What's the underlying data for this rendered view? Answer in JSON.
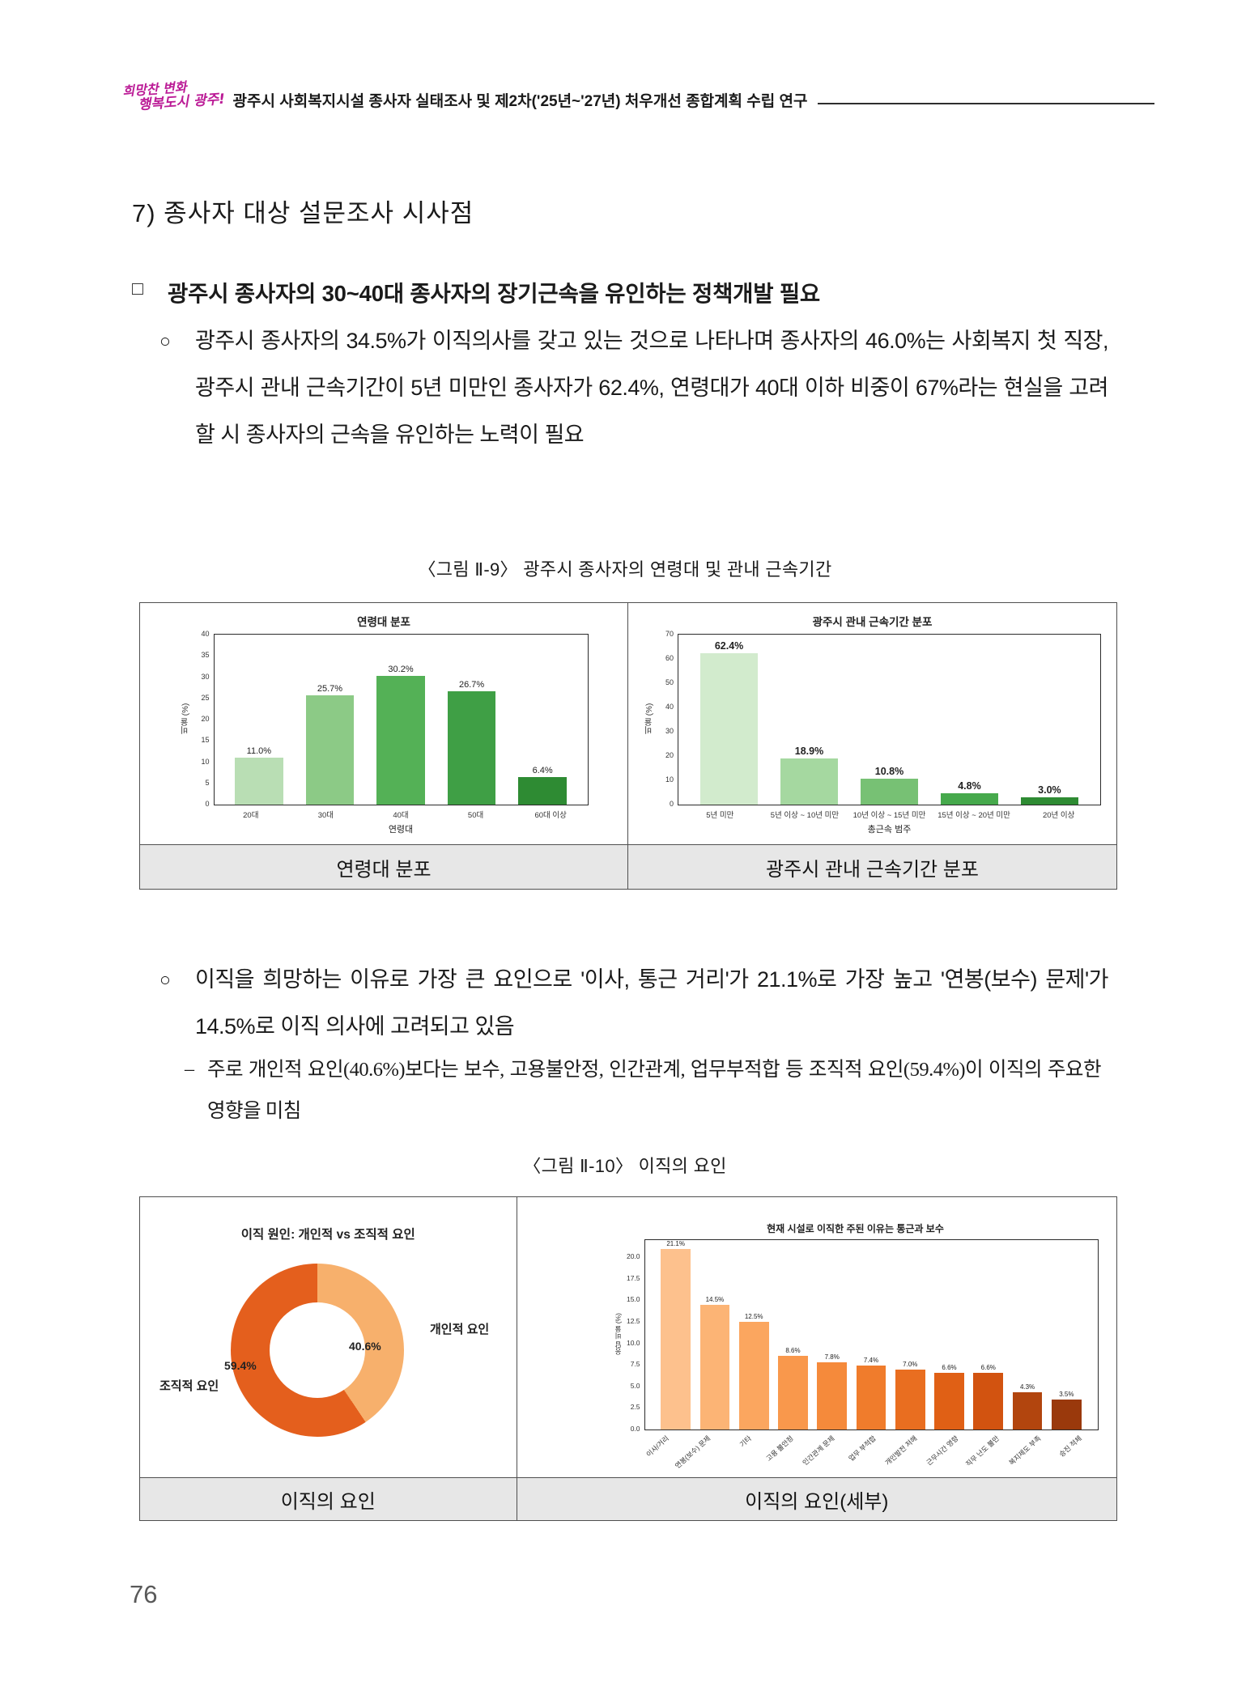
{
  "header": {
    "logo_line1": "희망찬 변화",
    "logo_line2": "행복도시 광주!",
    "title": "광주시 사회복지시설 종사자 실태조사 및 제2차('25년~'27년) 처우개선 종합계획 수립 연구"
  },
  "section": {
    "heading": "7) 종사자 대상 설문조사 시사점",
    "box_marker": "□",
    "box_heading": "광주시 종사자의 30~40대 종사자의 장기근속을 유인하는 정책개발 필요"
  },
  "bullets": {
    "bullet1_marker": "○",
    "bullet1_text": "광주시 종사자의 34.5%가 이직의사를 갖고 있는 것으로 나타나며 종사자의 46.0%는 사회복지 첫 직장, 광주시 관내 근속기간이 5년 미만인 종사자가 62.4%, 연령대가 40대 이하 비중이 67%라는 현실을 고려할 시 종사자의 근속을 유인하는 노력이 필요",
    "bullet2_marker": "○",
    "bullet2_text": "이직을 희망하는 이유로 가장 큰 요인으로 '이사, 통근 거리'가 21.1%로 가장 높고 '연봉(보수) 문제'가 14.5%로 이직 의사에 고려되고 있음",
    "dash_marker": "–",
    "dash_text": "주로 개인적 요인(40.6%)보다는 보수, 고용불안정, 인간관계, 업무부적합 등 조직적 요인(59.4%)이 이직의 주요한 영향을 미침"
  },
  "figure9": {
    "caption": "〈그림 Ⅱ-9〉 광주시 종사자의 연령대 및 관내 근속기간",
    "left_label": "연령대 분포",
    "right_label": "광주시 관내 근속기간 분포"
  },
  "figure10": {
    "caption": "〈그림 Ⅱ-10〉 이직의 요인",
    "left_label": "이직의 요인",
    "right_label": "이직의 요인(세부)"
  },
  "page_number": "76",
  "chart_data": [
    {
      "id": "age",
      "type": "bar",
      "title": "연령대 분포",
      "xlabel": "연령대",
      "ylabel": "비율 (%)",
      "ylim": [
        0,
        40
      ],
      "yticks": [
        "0",
        "5",
        "10",
        "15",
        "20",
        "25",
        "30",
        "35",
        "40"
      ],
      "categories": [
        "20대",
        "30대",
        "40대",
        "50대",
        "60대 이상"
      ],
      "values": [
        11.0,
        25.7,
        30.2,
        26.7,
        6.4
      ],
      "value_labels": [
        "11.0%",
        "25.7%",
        "30.2%",
        "26.7%",
        "6.4%"
      ],
      "colors": [
        "#b9deb4",
        "#8cca86",
        "#54b156",
        "#3f9f45",
        "#2e8b33"
      ],
      "grid": false,
      "legend": "none"
    },
    {
      "id": "tenure",
      "type": "bar",
      "title": "광주시 관내 근속기간 분포",
      "xlabel": "총근속 범주",
      "ylabel": "비율 (%)",
      "ylim": [
        0,
        70
      ],
      "yticks": [
        "0",
        "10",
        "20",
        "30",
        "40",
        "50",
        "60",
        "70"
      ],
      "categories": [
        "5년 미만",
        "5년 이상 ~ 10년 미만",
        "10년 이상 ~ 15년 미만",
        "15년 이상 ~ 20년 미만",
        "20년 이상"
      ],
      "values": [
        62.4,
        18.9,
        10.8,
        4.8,
        3.0
      ],
      "value_labels": [
        "62.4%",
        "18.9%",
        "10.8%",
        "4.8%",
        "3.0%"
      ],
      "colors": [
        "#d2ebcd",
        "#a5d8a0",
        "#77c174",
        "#46a94c",
        "#2e8b33"
      ],
      "grid": false,
      "legend": "none"
    },
    {
      "id": "turnover-donut",
      "type": "pie",
      "subtype": "donut",
      "title": "이직 원인: 개인적 vs 조직적 요인",
      "slices": [
        {
          "label": "개인적 요인",
          "value": 40.6,
          "value_label": "40.6%",
          "color": "#f7b06c"
        },
        {
          "label": "조직적 요인",
          "value": 59.4,
          "value_label": "59.4%",
          "color": "#e45f1d"
        }
      ],
      "start_angle_deg": 0,
      "direction": "clockwise"
    },
    {
      "id": "turnover-detail",
      "type": "bar",
      "title": "현재 시설로 이직한 주된 이유는 통근과 보수",
      "xlabel": "",
      "ylabel": "응답 비율 (%)",
      "ylim": [
        0,
        22
      ],
      "yticks": [
        "0.0",
        "2.5",
        "5.0",
        "7.5",
        "10.0",
        "12.5",
        "15.0",
        "17.5",
        "20.0"
      ],
      "categories": [
        "이사/거리",
        "연봉(보수) 문제",
        "기타",
        "고용 불안정",
        "인간관계 문제",
        "업무 부적합",
        "개인발전 저해",
        "근무시간 영향",
        "직무 난도 불만",
        "복지제도 부족",
        "승진 적체"
      ],
      "values": [
        21.1,
        14.5,
        12.5,
        8.6,
        7.8,
        7.4,
        7.0,
        6.6,
        6.6,
        4.3,
        3.5
      ],
      "value_labels": [
        "21.1%",
        "14.5%",
        "12.5%",
        "8.6%",
        "7.8%",
        "7.4%",
        "7.0%",
        "6.6%",
        "6.6%",
        "4.3%",
        "3.5%"
      ],
      "colors": [
        "#fdc18d",
        "#fcb475",
        "#fba65f",
        "#f9984c",
        "#f58a3b",
        "#f07c2c",
        "#e96e20",
        "#e06015",
        "#d25310",
        "#b2450e",
        "#9a390c"
      ],
      "grid": false,
      "legend": "none",
      "xtick_rotation_deg": 42
    }
  ]
}
